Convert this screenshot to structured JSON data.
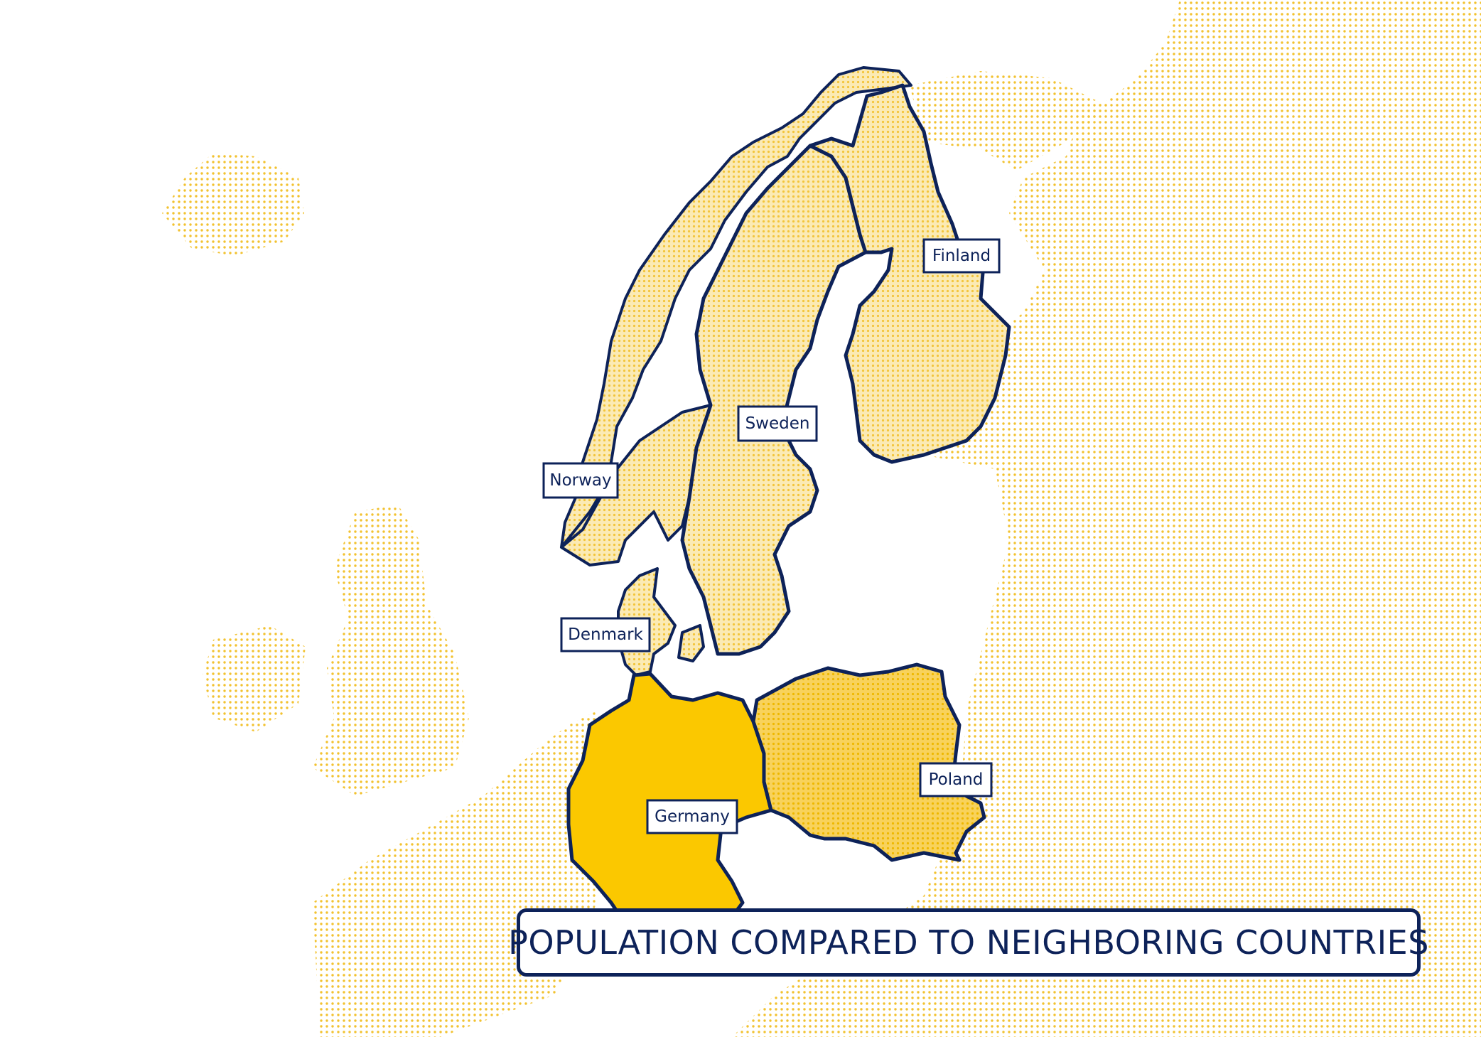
{
  "title": "POPULATION COMPARED TO NEIGHBORING COUNTRIES",
  "colors": {
    "outline": "#0d2259",
    "highlight_fill": "#fbc800",
    "land_dots": "#f2c230",
    "country_tint": "#fbeab4",
    "poland_fill": "#f8d25b",
    "background": "#ffffff"
  },
  "countries": [
    {
      "id": "norway",
      "label": "Norway"
    },
    {
      "id": "sweden",
      "label": "Sweden"
    },
    {
      "id": "finland",
      "label": "Finland"
    },
    {
      "id": "denmark",
      "label": "Denmark"
    },
    {
      "id": "germany",
      "label": "Germany"
    },
    {
      "id": "poland",
      "label": "Poland"
    }
  ]
}
